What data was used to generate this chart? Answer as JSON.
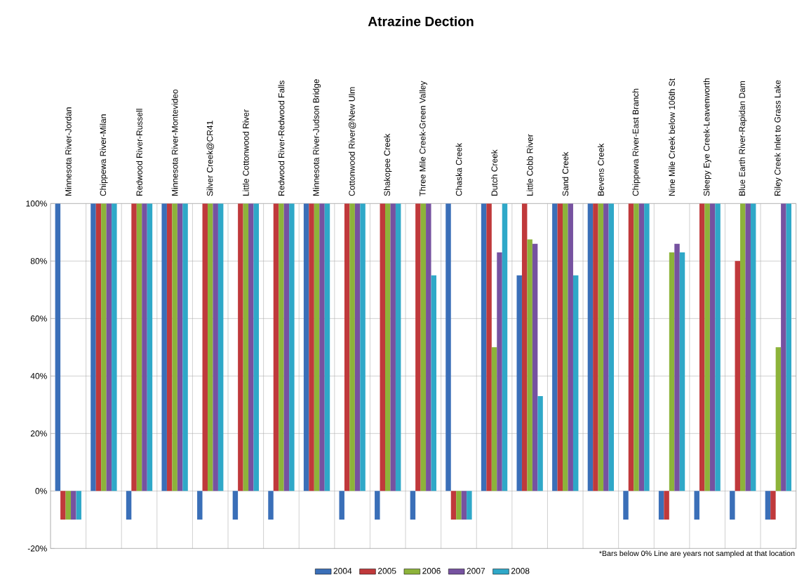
{
  "chart_data": {
    "type": "bar",
    "title": "Atrazine Dection",
    "categories": [
      "Minnesota River-Jordan",
      "Chippewa River-Milan",
      "Redwood River-Russell",
      "Minnesota River-Montevideo",
      "Silver Creek@CR41",
      "Little Cottonwood River",
      "Redwood River-Redwood Falls",
      "Minnesota River-Judson Bridge",
      "Cottonwood River@New Ulm",
      "Shakopee Creek",
      "Three Mile Creek-Green Valley",
      "Chaska Creek",
      "Dutch Creek",
      "Little Cobb River",
      "Sand Creek",
      "Bevens Creek",
      "Chippewa River-East Branch",
      "Nine Mile Creek below 106th St",
      "Sleepy Eye Creek-Leavenworth",
      "Blue Earth River-Rapidan Dam",
      "Riley Creek Inlet to Grass Lake"
    ],
    "series": [
      {
        "name": "2004",
        "color": "#3a6fb8",
        "values": [
          100,
          100,
          -10,
          100,
          -10,
          -10,
          -10,
          100,
          -10,
          -10,
          -10,
          100,
          100,
          75,
          100,
          100,
          -10,
          -10,
          -10,
          -10,
          -10
        ]
      },
      {
        "name": "2005",
        "color": "#c0393b",
        "values": [
          -10,
          100,
          100,
          100,
          100,
          100,
          100,
          100,
          100,
          100,
          100,
          -10,
          100,
          100,
          100,
          100,
          100,
          -10,
          100,
          80,
          -10
        ]
      },
      {
        "name": "2006",
        "color": "#8db33a",
        "values": [
          -10,
          100,
          100,
          100,
          100,
          100,
          100,
          100,
          100,
          100,
          100,
          -10,
          50,
          87.5,
          100,
          100,
          100,
          83,
          100,
          100,
          50
        ]
      },
      {
        "name": "2007",
        "color": "#7652a0",
        "values": [
          -10,
          100,
          100,
          100,
          100,
          100,
          100,
          100,
          100,
          100,
          100,
          -10,
          83,
          86,
          100,
          100,
          100,
          86,
          100,
          100,
          100
        ]
      },
      {
        "name": "2008",
        "color": "#2fa8c8",
        "values": [
          -10,
          100,
          100,
          100,
          100,
          100,
          100,
          100,
          100,
          100,
          75,
          -10,
          100,
          33,
          75,
          100,
          100,
          83,
          100,
          100,
          100
        ]
      }
    ],
    "ylim": [
      -20,
      100
    ],
    "yticks": [
      {
        "value": -20,
        "label": "-20%"
      },
      {
        "value": 0,
        "label": "0%"
      },
      {
        "value": 20,
        "label": "20%"
      },
      {
        "value": 40,
        "label": "40%"
      },
      {
        "value": 60,
        "label": "60%"
      },
      {
        "value": 80,
        "label": "80%"
      },
      {
        "value": 100,
        "label": "100%"
      }
    ],
    "grid": true,
    "legend": "bottom",
    "annotations": [
      "*Bars below 0% Line are years not sampled at that location"
    ]
  }
}
